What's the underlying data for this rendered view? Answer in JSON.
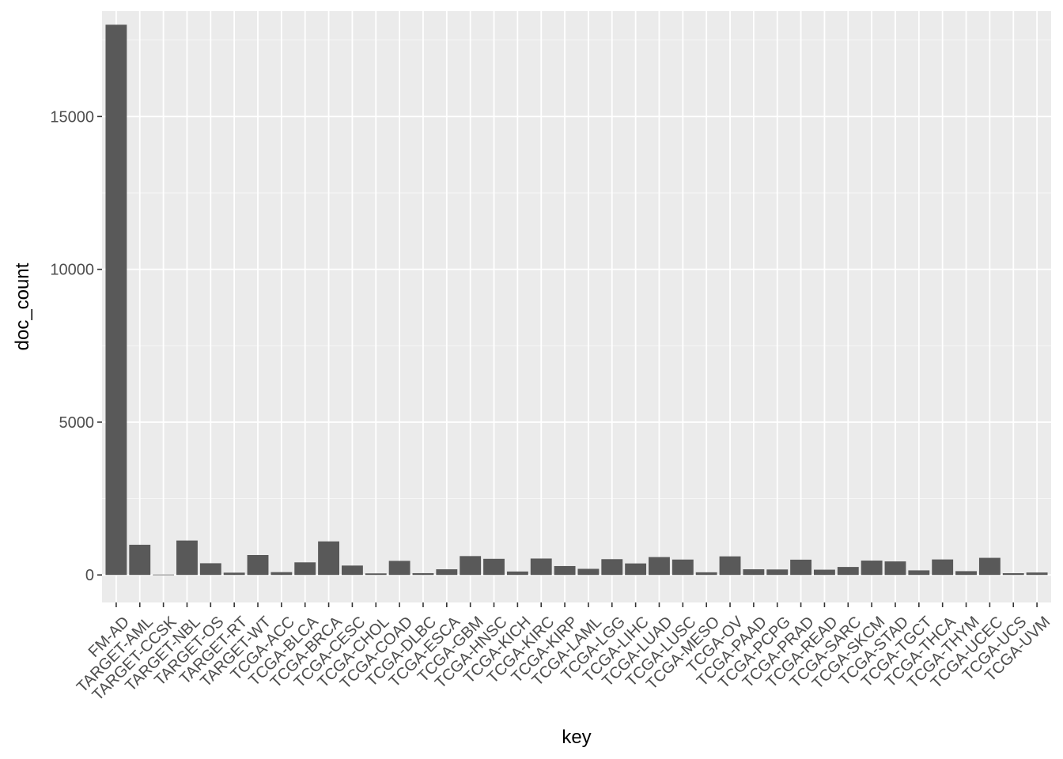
{
  "chart_data": {
    "type": "bar",
    "title": "",
    "xlabel": "key",
    "ylabel": "doc_count",
    "ylim": [
      -900,
      18450
    ],
    "yticks": [
      0,
      5000,
      10000,
      15000
    ],
    "ytick_labels": [
      "0",
      "5000",
      "10000",
      "15000"
    ],
    "grid": true,
    "categories": [
      "FM-AD",
      "TARGET-AML",
      "TARGET-CCSK",
      "TARGET-NBL",
      "TARGET-OS",
      "TARGET-RT",
      "TARGET-WT",
      "TCGA-ACC",
      "TCGA-BLCA",
      "TCGA-BRCA",
      "TCGA-CESC",
      "TCGA-CHOL",
      "TCGA-COAD",
      "TCGA-DLBC",
      "TCGA-ESCA",
      "TCGA-GBM",
      "TCGA-HNSC",
      "TCGA-KICH",
      "TCGA-KIRC",
      "TCGA-KIRP",
      "TCGA-LAML",
      "TCGA-LGG",
      "TCGA-LIHC",
      "TCGA-LUAD",
      "TCGA-LUSC",
      "TCGA-MESO",
      "TCGA-OV",
      "TCGA-PAAD",
      "TCGA-PCPG",
      "TCGA-PRAD",
      "TCGA-READ",
      "TCGA-SARC",
      "TCGA-SKCM",
      "TCGA-STAD",
      "TCGA-TGCT",
      "TCGA-THCA",
      "TCGA-THYM",
      "TCGA-UCEC",
      "TCGA-UCS",
      "TCGA-UVM"
    ],
    "values": [
      18004,
      988,
      13,
      1127,
      383,
      75,
      652,
      92,
      412,
      1098,
      307,
      51,
      461,
      58,
      185,
      617,
      528,
      113,
      537,
      291,
      200,
      516,
      377,
      585,
      504,
      87,
      608,
      185,
      179,
      500,
      172,
      261,
      470,
      443,
      150,
      507,
      124,
      560,
      57,
      80
    ],
    "colors": {
      "panel_background": "#ebebeb",
      "grid_major": "#ffffff",
      "bar_fill": "#595959",
      "tick_text": "#4d4d4d",
      "tick_mark": "#333333",
      "axis_title": "#000000"
    }
  }
}
